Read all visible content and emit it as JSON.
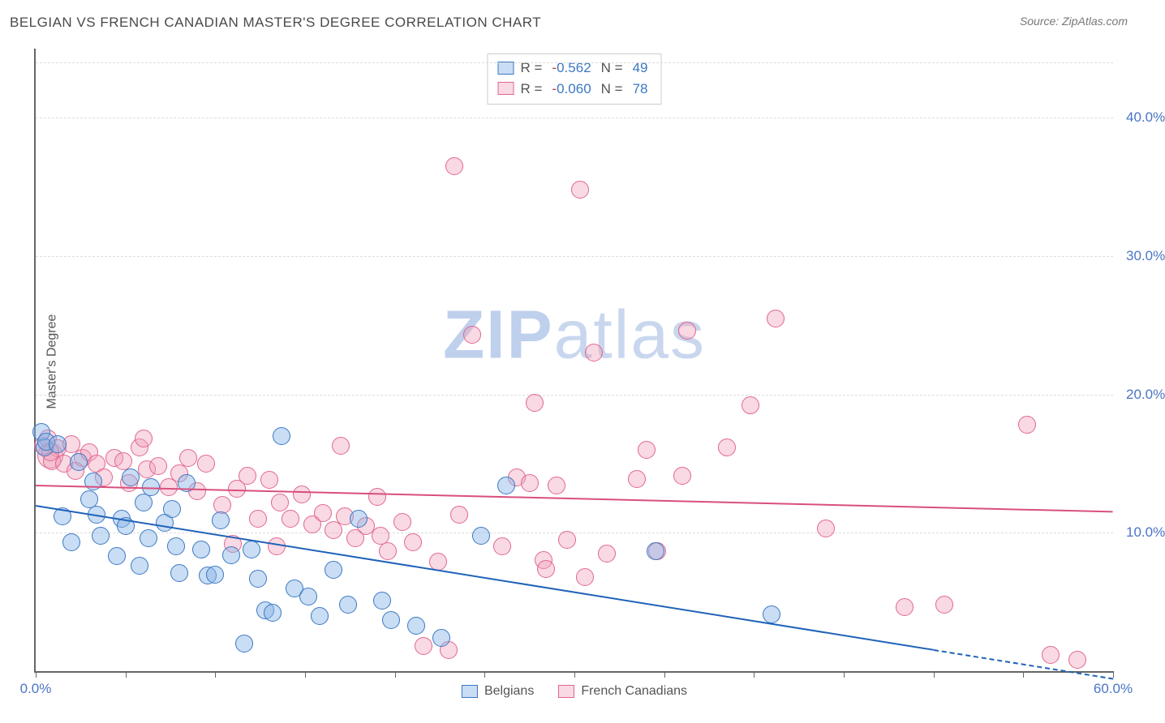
{
  "title": "BELGIAN VS FRENCH CANADIAN MASTER'S DEGREE CORRELATION CHART",
  "source": "Source: ZipAtlas.com",
  "ylabel": "Master's Degree",
  "watermark": {
    "bold": "ZIP",
    "rest": "atlas"
  },
  "chart": {
    "type": "scatter",
    "background_color": "#ffffff",
    "grid_color": "#dddddd",
    "axis_color": "#666666",
    "tick_font_color": "#4a75c4",
    "tick_fontsize": 17,
    "xlim": [
      0,
      60
    ],
    "ylim": [
      0,
      45
    ],
    "xticks_every": 5,
    "xticks_labeled": [
      {
        "v": 0,
        "label": "0.0%"
      },
      {
        "v": 60,
        "label": "60.0%"
      }
    ],
    "yticks": [
      {
        "v": 10,
        "label": "10.0%"
      },
      {
        "v": 20,
        "label": "20.0%"
      },
      {
        "v": 30,
        "label": "30.0%"
      },
      {
        "v": 40,
        "label": "40.0%"
      }
    ],
    "marker_radius": 11,
    "series": {
      "belgians": {
        "label": "Belgians",
        "fill": "rgba(135,180,230,0.45)",
        "stroke": "#3b78c2",
        "R": "-0.562",
        "N": "49",
        "trend": {
          "y_at_x0": 12.0,
          "y_at_x60": -0.5,
          "color": "#1f62b8",
          "dash_tail": true
        },
        "points": [
          [
            0.3,
            17.3
          ],
          [
            0.5,
            16.2
          ],
          [
            0.6,
            16.6
          ],
          [
            1.5,
            11.2
          ],
          [
            1.2,
            16.4
          ],
          [
            2.0,
            9.3
          ],
          [
            2.4,
            15.1
          ],
          [
            3.0,
            12.4
          ],
          [
            3.4,
            11.3
          ],
          [
            3.6,
            9.8
          ],
          [
            3.2,
            13.7
          ],
          [
            4.5,
            8.3
          ],
          [
            4.8,
            11.0
          ],
          [
            5.0,
            10.5
          ],
          [
            5.3,
            14.0
          ],
          [
            6.0,
            12.2
          ],
          [
            6.4,
            13.3
          ],
          [
            6.3,
            9.6
          ],
          [
            5.8,
            7.6
          ],
          [
            7.2,
            10.7
          ],
          [
            7.8,
            9.0
          ],
          [
            7.6,
            11.7
          ],
          [
            8.4,
            13.6
          ],
          [
            8.0,
            7.1
          ],
          [
            9.2,
            8.8
          ],
          [
            9.6,
            6.9
          ],
          [
            10.3,
            10.9
          ],
          [
            10.9,
            8.4
          ],
          [
            10.0,
            7.0
          ],
          [
            11.6,
            2.0
          ],
          [
            12.4,
            6.7
          ],
          [
            12.8,
            4.4
          ],
          [
            13.2,
            4.2
          ],
          [
            12.0,
            8.8
          ],
          [
            13.7,
            17.0
          ],
          [
            14.4,
            6.0
          ],
          [
            15.2,
            5.4
          ],
          [
            15.8,
            4.0
          ],
          [
            16.6,
            7.3
          ],
          [
            17.4,
            4.8
          ],
          [
            18.0,
            11.0
          ],
          [
            19.3,
            5.1
          ],
          [
            19.8,
            3.7
          ],
          [
            21.2,
            3.3
          ],
          [
            22.6,
            2.4
          ],
          [
            24.8,
            9.8
          ],
          [
            26.2,
            13.4
          ],
          [
            34.5,
            8.7
          ],
          [
            41.0,
            4.1
          ]
        ]
      },
      "french_canadians": {
        "label": "French Canadians",
        "fill": "rgba(240,160,185,0.40)",
        "stroke": "#e1668f",
        "R": "-0.060",
        "N": "78",
        "trend": {
          "y_at_x0": 13.5,
          "y_at_x60": 11.6,
          "color": "#d94f7d",
          "dash_tail": false
        },
        "points": [
          [
            0.4,
            16.3
          ],
          [
            0.7,
            16.8
          ],
          [
            1.2,
            16.1
          ],
          [
            0.9,
            15.2
          ],
          [
            0.8,
            15.8
          ],
          [
            1.6,
            15.0
          ],
          [
            2.2,
            14.5
          ],
          [
            2.6,
            15.4
          ],
          [
            2.0,
            16.4
          ],
          [
            3.0,
            15.8
          ],
          [
            3.4,
            15.0
          ],
          [
            3.8,
            14.0
          ],
          [
            4.4,
            15.4
          ],
          [
            4.9,
            15.2
          ],
          [
            5.2,
            13.6
          ],
          [
            5.8,
            16.2
          ],
          [
            6.2,
            14.6
          ],
          [
            6.8,
            14.8
          ],
          [
            7.4,
            13.3
          ],
          [
            6.0,
            16.8
          ],
          [
            8.0,
            14.3
          ],
          [
            8.5,
            15.4
          ],
          [
            9.0,
            13.0
          ],
          [
            9.5,
            15.0
          ],
          [
            10.4,
            12.0
          ],
          [
            11.2,
            13.2
          ],
          [
            11.8,
            14.1
          ],
          [
            12.4,
            11.0
          ],
          [
            13.0,
            13.8
          ],
          [
            13.6,
            12.2
          ],
          [
            14.2,
            11.0
          ],
          [
            14.8,
            12.8
          ],
          [
            15.4,
            10.6
          ],
          [
            16.0,
            11.4
          ],
          [
            16.6,
            10.2
          ],
          [
            17.2,
            11.2
          ],
          [
            17.0,
            16.3
          ],
          [
            17.8,
            9.6
          ],
          [
            18.4,
            10.5
          ],
          [
            19.0,
            12.6
          ],
          [
            19.6,
            8.7
          ],
          [
            20.4,
            10.8
          ],
          [
            21.0,
            9.3
          ],
          [
            21.6,
            1.8
          ],
          [
            22.4,
            7.9
          ],
          [
            23.0,
            1.5
          ],
          [
            23.3,
            36.5
          ],
          [
            23.6,
            11.3
          ],
          [
            24.3,
            24.3
          ],
          [
            26.0,
            9.0
          ],
          [
            26.8,
            14.0
          ],
          [
            27.5,
            13.6
          ],
          [
            27.8,
            19.4
          ],
          [
            28.3,
            8.0
          ],
          [
            28.4,
            7.4
          ],
          [
            29.0,
            13.4
          ],
          [
            29.6,
            9.5
          ],
          [
            30.3,
            34.8
          ],
          [
            30.6,
            6.8
          ],
          [
            31.1,
            23.0
          ],
          [
            31.8,
            8.5
          ],
          [
            33.5,
            13.9
          ],
          [
            34.0,
            16.0
          ],
          [
            34.6,
            8.7
          ],
          [
            36.0,
            14.1
          ],
          [
            36.3,
            24.6
          ],
          [
            38.5,
            16.2
          ],
          [
            39.8,
            19.2
          ],
          [
            41.2,
            25.5
          ],
          [
            44.0,
            10.3
          ],
          [
            48.4,
            4.6
          ],
          [
            50.6,
            4.8
          ],
          [
            55.2,
            17.8
          ],
          [
            56.5,
            1.2
          ],
          [
            58.0,
            0.8
          ],
          [
            11.0,
            9.2
          ],
          [
            13.4,
            9.0
          ],
          [
            19.2,
            9.8
          ]
        ],
        "big_points": [
          {
            "xy": [
              0.8,
              15.6
            ],
            "r": 16
          }
        ]
      }
    }
  }
}
